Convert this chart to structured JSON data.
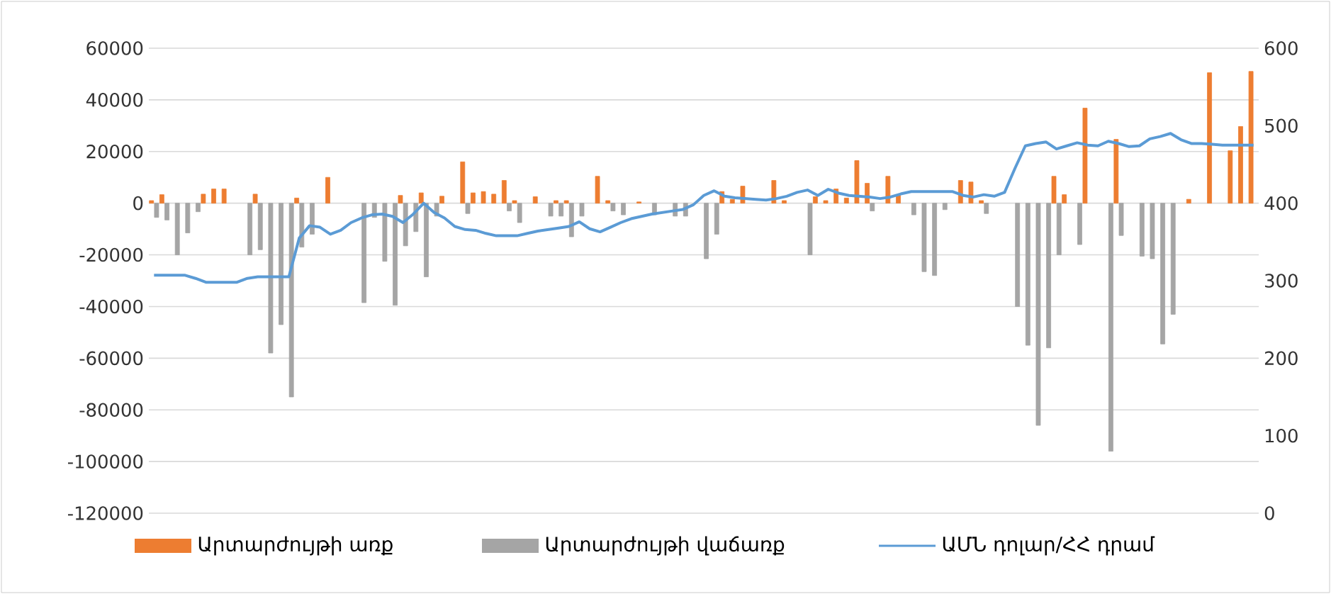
{
  "chart_data": {
    "type": "bar",
    "categories": [
      null,
      null,
      null,
      null,
      null,
      null,
      null,
      null,
      null,
      null,
      null,
      null,
      null,
      null,
      null,
      null,
      null,
      null,
      null,
      null,
      null,
      null,
      null,
      null,
      null,
      null,
      null,
      null,
      null,
      null,
      null,
      null,
      null,
      null,
      null,
      null,
      null,
      null,
      null,
      null,
      null,
      null,
      null,
      null,
      null,
      null,
      null,
      null,
      null,
      null,
      null,
      null,
      null,
      null,
      null,
      null,
      null,
      null,
      null,
      null,
      null,
      null,
      null,
      null,
      null,
      null,
      null,
      null,
      null,
      null,
      null,
      null,
      null,
      null,
      null,
      null,
      null,
      null,
      null,
      null,
      null,
      null,
      null,
      null,
      null,
      null,
      null,
      null,
      null,
      null,
      null,
      null,
      null,
      null,
      null,
      null,
      null,
      null,
      null,
      null,
      null,
      null,
      null,
      null,
      null,
      null,
      null
    ],
    "series": [
      {
        "name": "Արտարժույթի առք",
        "color": "#ed7d31",
        "values": [
          1000,
          3300,
          null,
          null,
          null,
          3500,
          5500,
          5500,
          null,
          null,
          3500,
          null,
          null,
          null,
          2000,
          null,
          null,
          10000,
          null,
          null,
          null,
          null,
          null,
          null,
          3000,
          null,
          4000,
          null,
          2700,
          null,
          16000,
          4000,
          4500,
          3500,
          8800,
          1000,
          null,
          2500,
          null,
          1000,
          1000,
          null,
          null,
          10400,
          1000,
          null,
          null,
          500,
          null,
          null,
          null,
          null,
          null,
          null,
          null,
          4500,
          1500,
          6600,
          null,
          null,
          8800,
          1000,
          null,
          null,
          2500,
          1000,
          5500,
          2000,
          16500,
          7700,
          null,
          10400,
          3000,
          null,
          null,
          null,
          null,
          null,
          8800,
          8200,
          1000,
          null,
          null,
          null,
          null,
          null,
          null,
          10400,
          3300,
          null,
          36800,
          null,
          null,
          24700,
          null,
          null,
          null,
          null,
          null,
          null,
          1500,
          null,
          50500,
          null,
          20300,
          29700,
          51000
        ]
      },
      {
        "name": "Արտարժույթի վաճառք",
        "color": "#a5a5a5",
        "values": [
          -5500,
          -6500,
          -20000,
          -11500,
          -3300,
          null,
          null,
          null,
          null,
          -20000,
          -18000,
          -58000,
          -47000,
          -75000,
          -17000,
          -12000,
          null,
          null,
          null,
          null,
          -38500,
          -5500,
          -22500,
          -39500,
          -16500,
          -11000,
          -28500,
          -5000,
          null,
          null,
          -4000,
          null,
          null,
          null,
          -3000,
          -7500,
          null,
          null,
          -5000,
          -5000,
          -13000,
          -5000,
          null,
          null,
          -3000,
          -4500,
          null,
          null,
          -4500,
          null,
          -5000,
          -5000,
          null,
          -21500,
          -12000,
          null,
          null,
          null,
          null,
          null,
          null,
          null,
          null,
          -20000,
          null,
          null,
          null,
          null,
          null,
          -3000,
          null,
          null,
          null,
          -4500,
          -26500,
          -28000,
          -2500,
          null,
          null,
          null,
          -4000,
          null,
          null,
          -40000,
          -55000,
          -86000,
          -56000,
          -20000,
          null,
          -16000,
          null,
          null,
          -96000,
          -12500,
          null,
          -20500,
          -21500,
          -54500,
          -43000,
          null,
          null,
          null,
          null,
          null,
          null,
          null,
          null
        ]
      },
      {
        "name": "ԱՄՆ դոլար/ՀՀ դրամ",
        "color": "#5b9bd5",
        "type": "line",
        "axis": "y2",
        "values": [
          307,
          307,
          307,
          307,
          303,
          298,
          298,
          298,
          298,
          303,
          305,
          305,
          305,
          305,
          355,
          371,
          369,
          360,
          365,
          375,
          381,
          385,
          386,
          383,
          375,
          386,
          400,
          388,
          381,
          370,
          366,
          365,
          361,
          358,
          358,
          358,
          361,
          364,
          366,
          368,
          370,
          376,
          367,
          363,
          369,
          375,
          380,
          383,
          386,
          388,
          390,
          392,
          398,
          410,
          416,
          409,
          407,
          406,
          405,
          404,
          406,
          409,
          414,
          417,
          410,
          418,
          413,
          410,
          409,
          408,
          406,
          408,
          412,
          415,
          415,
          415,
          415,
          415,
          410,
          408,
          411,
          409,
          414,
          445,
          474,
          477,
          479,
          470,
          474,
          478,
          475,
          474,
          480,
          477,
          473,
          474,
          483,
          486,
          490,
          482,
          477,
          477,
          476,
          475,
          475,
          475,
          475
        ]
      }
    ],
    "ylim": [
      -120000,
      60000
    ],
    "yticks": [
      -120000,
      -100000,
      -80000,
      -60000,
      -40000,
      -20000,
      0,
      20000,
      40000,
      60000
    ],
    "y2lim": [
      0,
      600
    ],
    "y2ticks": [
      0,
      100,
      200,
      300,
      400,
      500,
      600
    ],
    "grid": "y",
    "legend": "bottom",
    "marker": "none",
    "line_style": "solid"
  }
}
